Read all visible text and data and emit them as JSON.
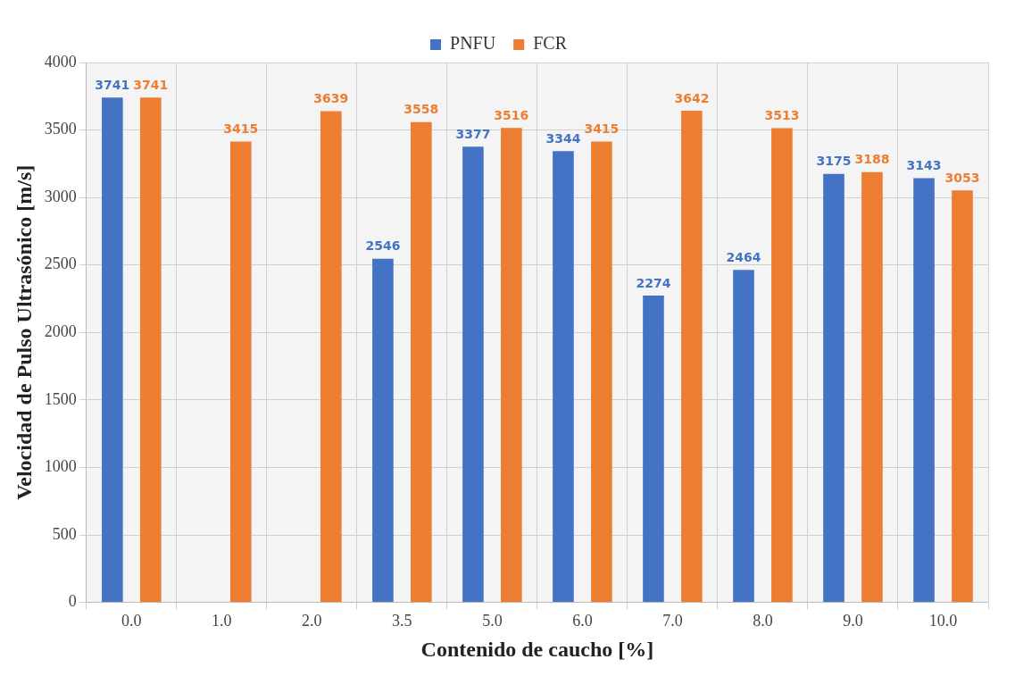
{
  "chart_data": {
    "type": "bar",
    "xlabel": "Contenido de caucho [%]",
    "ylabel": "Velocidad de Pulso Ultrasónico [m/s]",
    "categories": [
      "0.0",
      "1.0",
      "2.0",
      "3.5",
      "5.0",
      "6.0",
      "7.0",
      "8.0",
      "9.0",
      "10.0"
    ],
    "series": [
      {
        "name": "PNFU",
        "color": "#4472c4",
        "values": [
          3741,
          null,
          null,
          2546,
          3377,
          3344,
          2274,
          2464,
          3175,
          3143
        ]
      },
      {
        "name": "FCR",
        "color": "#ed7d31",
        "values": [
          3741,
          3415,
          3639,
          3558,
          3516,
          3415,
          3642,
          3513,
          3188,
          3053
        ]
      }
    ],
    "ylim": [
      0,
      4000
    ],
    "yticks": [
      0,
      500,
      1000,
      1500,
      2000,
      2500,
      3000,
      3500,
      4000
    ],
    "grid": true,
    "legend": "top",
    "data_labels": true
  }
}
